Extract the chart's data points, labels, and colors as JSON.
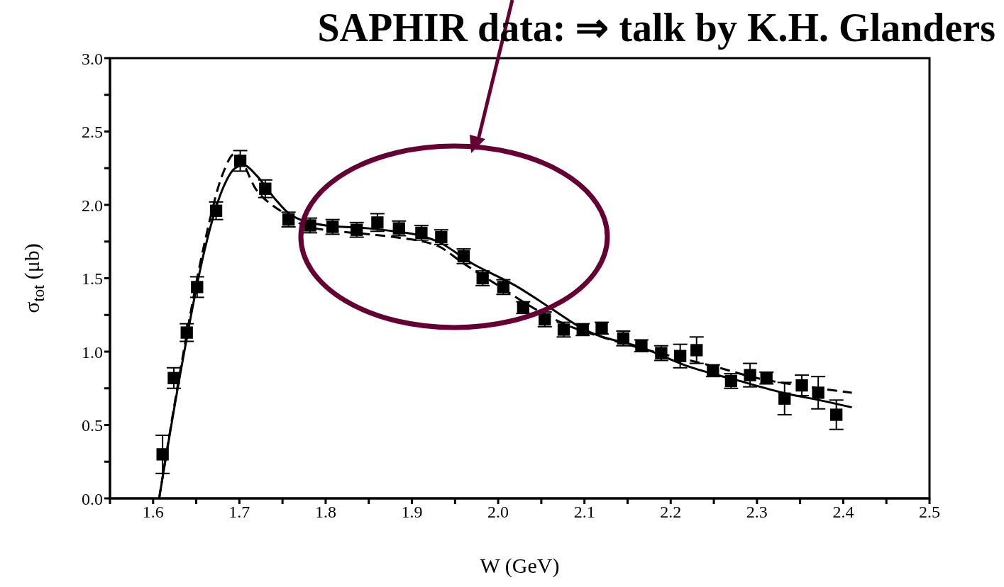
{
  "chart_data": {
    "type": "scatter",
    "title": "SAPHIR data: ⇒ talk by K.H. Glanders",
    "xlabel": "W (GeV)",
    "ylabel": "σ$_{tot}$ (μb)",
    "xlim": [
      1.55,
      2.5
    ],
    "xticks": [
      {
        "value": 1.55,
        "label": null
      },
      1.6,
      {
        "value": 1.65,
        "label": null
      },
      1.7,
      {
        "value": 1.75,
        "label": null
      },
      1.8,
      {
        "value": 1.85,
        "label": null
      },
      1.9,
      {
        "value": 1.95,
        "label": null
      },
      {
        "value": 2,
        "label": "2.0"
      },
      {
        "value": 2.05,
        "label": null
      },
      2.1,
      {
        "value": 2.15,
        "label": null
      },
      2.2,
      {
        "value": 2.25,
        "label": null
      },
      2.3,
      {
        "value": 2.35,
        "label": null
      },
      2.4,
      {
        "value": 2.45,
        "label": null
      },
      2.5
    ],
    "ylim": [
      0,
      3
    ],
    "yticks": [
      {
        "value": 0,
        "label": "0.0"
      },
      {
        "value": 0.25,
        "label": null
      },
      0.5,
      {
        "value": 0.75,
        "label": null
      },
      {
        "value": 1,
        "label": "1.0"
      },
      {
        "value": 1.25,
        "label": null
      },
      1.5,
      {
        "value": 1.75,
        "label": null
      },
      {
        "value": 2,
        "label": "2.0"
      },
      {
        "value": 2.25,
        "label": null
      },
      2.5,
      {
        "value": 2.75,
        "label": null
      },
      {
        "value": 3,
        "label": "3.0"
      }
    ],
    "grid": false,
    "legend": false,
    "series": [
      {
        "marker": "square",
        "color": "#000000",
        "x": [
          1.611,
          1.624,
          1.639,
          1.651,
          1.673,
          1.701,
          1.73,
          1.757,
          1.782,
          1.808,
          1.836,
          1.86,
          1.885,
          1.911,
          1.934,
          1.96,
          1.982,
          2.006,
          2.029,
          2.054,
          2.076,
          2.098,
          2.12,
          2.145,
          2.166,
          2.189,
          2.211,
          2.23,
          2.249,
          2.27,
          2.292,
          2.311,
          2.332,
          2.352,
          2.371,
          2.392
        ],
        "values": [
          0.3,
          0.82,
          1.13,
          1.44,
          1.96,
          2.3,
          2.11,
          1.9,
          1.86,
          1.85,
          1.83,
          1.88,
          1.84,
          1.81,
          1.78,
          1.65,
          1.5,
          1.44,
          1.3,
          1.22,
          1.15,
          1.15,
          1.16,
          1.09,
          1.04,
          0.99,
          0.97,
          1.01,
          0.87,
          0.8,
          0.84,
          0.82,
          0.68,
          0.77,
          0.72,
          0.57
        ],
        "errors": [
          0.13,
          0.07,
          0.06,
          0.07,
          0.06,
          0.07,
          0.06,
          0.05,
          0.05,
          0.05,
          0.05,
          0.06,
          0.05,
          0.05,
          0.05,
          0.05,
          0.05,
          0.05,
          0.04,
          0.05,
          0.05,
          0.04,
          0.04,
          0.05,
          0.04,
          0.05,
          0.08,
          0.09,
          0.04,
          0.05,
          0.08,
          0.04,
          0.11,
          0.07,
          0.11,
          0.1
        ]
      },
      {
        "type": "line",
        "marker": "none",
        "line_style": "solid",
        "color": "#000000",
        "x": [
          1.607,
          1.63,
          1.66,
          1.68,
          1.695,
          1.705,
          1.72,
          1.74,
          1.76,
          1.8,
          1.85,
          1.88,
          1.91,
          1.93,
          1.97,
          2.02,
          2.06,
          2.1,
          2.17,
          2.22,
          2.28,
          2.33,
          2.38,
          2.41
        ],
        "values": [
          0,
          0.8,
          1.7,
          2.1,
          2.25,
          2.27,
          2.2,
          2.05,
          1.93,
          1.86,
          1.84,
          1.82,
          1.79,
          1.75,
          1.6,
          1.45,
          1.3,
          1.15,
          1.02,
          0.9,
          0.8,
          0.72,
          0.66,
          0.62
        ]
      },
      {
        "type": "line",
        "marker": "none",
        "line_style": "dashed",
        "color": "#000000",
        "x": [
          1.607,
          1.63,
          1.66,
          1.68,
          1.695,
          1.72,
          1.75,
          1.78,
          1.85,
          1.88,
          1.93,
          1.96,
          2,
          2.04,
          2.08,
          2.12,
          2.18,
          2.25,
          2.3,
          2.36,
          2.41
        ],
        "values": [
          0,
          0.82,
          1.75,
          2.2,
          2.35,
          2.1,
          1.95,
          1.85,
          1.8,
          1.78,
          1.72,
          1.6,
          1.45,
          1.3,
          1.18,
          1.1,
          1.0,
          0.9,
          0.82,
          0.76,
          0.72
        ]
      }
    ]
  }
}
